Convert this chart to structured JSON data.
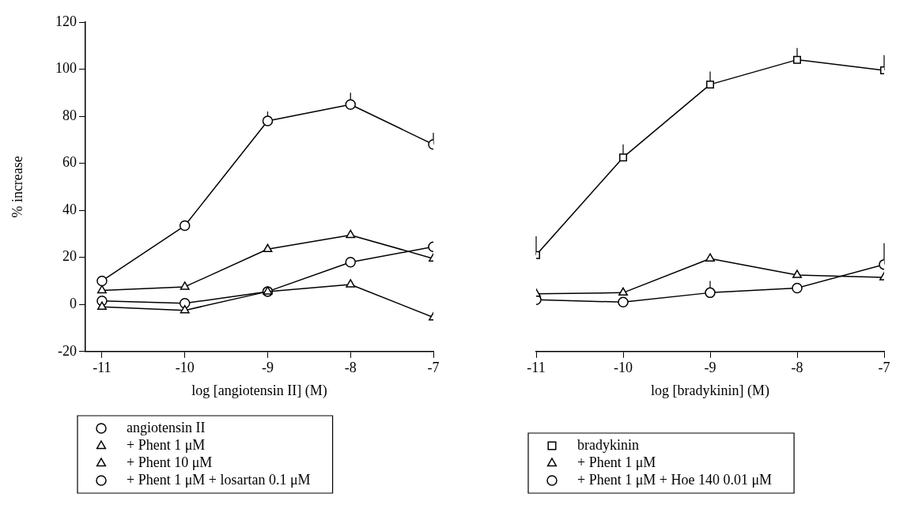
{
  "chart_data": [
    {
      "type": "line",
      "xlabel": "log [angiotensin II] (M)",
      "ylabel": "% increase",
      "x": [
        -11,
        -10,
        -9,
        -8,
        -7
      ],
      "xlim": [
        -11.2,
        -7
      ],
      "xticks": [
        -11,
        -10,
        -9,
        -8,
        -7
      ],
      "ylim": [
        -20,
        120
      ],
      "yticks": [
        -20,
        0,
        20,
        40,
        60,
        80,
        100,
        120
      ],
      "grid": false,
      "legend": "bottom",
      "series": [
        {
          "name": "angiotensin II",
          "color": "#000000",
          "marker": "circle",
          "values": [
            10,
            33.5,
            78,
            85,
            68
          ],
          "errors": [
            null,
            null,
            [
              78,
              82
            ],
            [
              85,
              90
            ],
            [
              68,
              73
            ]
          ]
        },
        {
          "name": "+ Phent 1 μM",
          "color": "#000000",
          "marker": "triangle",
          "values": [
            6,
            7.5,
            23.5,
            29.5,
            19.5
          ]
        },
        {
          "name": "+ Phent 10 μM",
          "color": "#000000",
          "marker": "triangle",
          "values": [
            -1,
            -2.5,
            5.5,
            8.5,
            -5.5
          ]
        },
        {
          "name": "+ Phent 1 μM + losartan 0.1 μM",
          "color": "#000000",
          "marker": "circle",
          "values": [
            1.5,
            0.5,
            5.5,
            18,
            24.5
          ]
        }
      ]
    },
    {
      "type": "line",
      "xlabel": "log [bradykinin] (M)",
      "x": [
        -11,
        -10,
        -9,
        -8,
        -7
      ],
      "xlim": [
        -11,
        -7
      ],
      "xticks": [
        -11,
        -10,
        -9,
        -8,
        -7
      ],
      "ylim": [
        -20,
        120
      ],
      "yticks": [
        -20,
        0,
        20,
        40,
        60,
        80,
        100,
        120
      ],
      "tick_labels": "x",
      "grid": false,
      "legend": "bottom",
      "series": [
        {
          "name": "bradykinin",
          "color": "#000000",
          "marker": "square",
          "values": [
            21,
            62.5,
            93.5,
            104,
            99.5
          ],
          "errors": [
            [
              21,
              29
            ],
            [
              62.5,
              68
            ],
            [
              93.5,
              99
            ],
            [
              104,
              109
            ],
            [
              99.5,
              106
            ]
          ]
        },
        {
          "name": "+ Phent 1 μM",
          "color": "#000000",
          "marker": "triangle",
          "values": [
            4.5,
            5,
            19.5,
            12.5,
            11.5
          ]
        },
        {
          "name": "+ Phent 1 μM + Hoe 140 0.01 μM",
          "color": "#000000",
          "marker": "circle",
          "values": [
            2,
            1,
            5,
            7,
            17
          ],
          "errors": [
            null,
            null,
            [
              5,
              10
            ],
            null,
            [
              17,
              26
            ]
          ]
        }
      ]
    }
  ]
}
